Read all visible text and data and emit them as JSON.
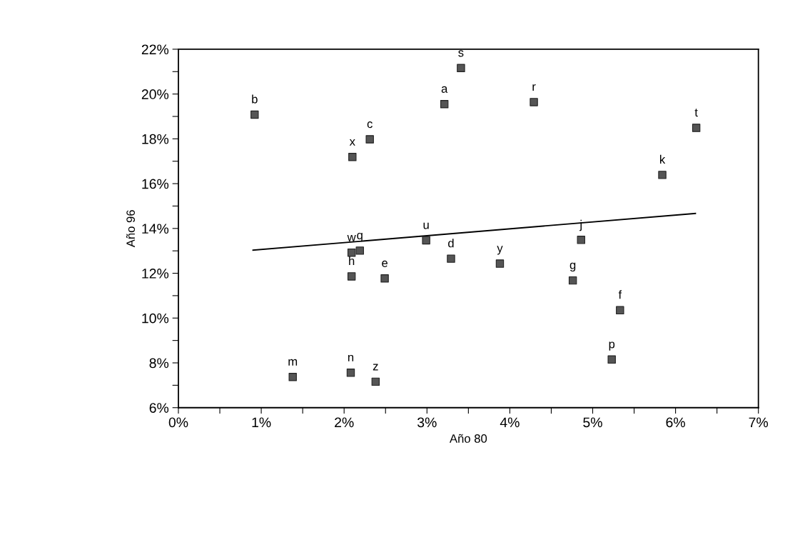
{
  "chart_data": {
    "type": "scatter",
    "xlabel": "Año 80",
    "ylabel": "Año 96",
    "xlim": [
      0,
      7
    ],
    "ylim": [
      6,
      22
    ],
    "xticks": [
      {
        "value": 0,
        "label": "0%"
      },
      {
        "value": 0.5,
        "label": null
      },
      {
        "value": 1,
        "label": "1%"
      },
      {
        "value": 1.5,
        "label": null
      },
      {
        "value": 2,
        "label": "2%"
      },
      {
        "value": 2.5,
        "label": null
      },
      {
        "value": 3,
        "label": "3%"
      },
      {
        "value": 3.5,
        "label": null
      },
      {
        "value": 4,
        "label": "4%"
      },
      {
        "value": 4.5,
        "label": null
      },
      {
        "value": 5,
        "label": "5%"
      },
      {
        "value": 5.5,
        "label": null
      },
      {
        "value": 6,
        "label": "6%"
      },
      {
        "value": 6.5,
        "label": null
      },
      {
        "value": 7,
        "label": "7%"
      }
    ],
    "yticks": [
      {
        "value": 6,
        "label": "6%"
      },
      {
        "value": 7,
        "label": null
      },
      {
        "value": 8,
        "label": "8%"
      },
      {
        "value": 9,
        "label": null
      },
      {
        "value": 10,
        "label": "10%"
      },
      {
        "value": 11,
        "label": null
      },
      {
        "value": 12,
        "label": "12%"
      },
      {
        "value": 13,
        "label": null
      },
      {
        "value": 14,
        "label": "14%"
      },
      {
        "value": 15,
        "label": null
      },
      {
        "value": 16,
        "label": "16%"
      },
      {
        "value": 17,
        "label": null
      },
      {
        "value": 18,
        "label": "18%"
      },
      {
        "value": 19,
        "label": null
      },
      {
        "value": 20,
        "label": "20%"
      },
      {
        "value": 21,
        "label": null
      },
      {
        "value": 22,
        "label": "22%"
      }
    ],
    "grid": false,
    "marker": "square",
    "series": [
      {
        "color": "#555555",
        "x": [
          0.92,
          2.1,
          2.31,
          3.21,
          3.41,
          4.29,
          6.25,
          5.84,
          4.86,
          2.09,
          2.19,
          2.09,
          2.49,
          2.99,
          3.29,
          1.38,
          2.08,
          2.38,
          3.88,
          4.76,
          5.33,
          5.23
        ],
        "values": [
          19.08,
          17.19,
          17.98,
          19.55,
          21.16,
          19.64,
          18.49,
          16.39,
          13.49,
          12.92,
          13.01,
          11.86,
          11.77,
          13.47,
          12.65,
          7.37,
          7.56,
          7.16,
          12.43,
          11.68,
          10.35,
          8.15
        ]
      },
      {
        "type": "line",
        "color": "#000000",
        "marker": "none",
        "line_style": "solid",
        "x": [
          0.9,
          6.24
        ],
        "values": [
          13.03,
          14.67
        ]
      }
    ],
    "annotations": [
      {
        "text": "b",
        "x": 0.92,
        "y": 19.08
      },
      {
        "text": "x",
        "x": 2.1,
        "y": 17.19
      },
      {
        "text": "c",
        "x": 2.31,
        "y": 17.98
      },
      {
        "text": "a",
        "x": 3.21,
        "y": 19.55
      },
      {
        "text": "s",
        "x": 3.41,
        "y": 21.16
      },
      {
        "text": "r",
        "x": 4.29,
        "y": 19.64
      },
      {
        "text": "t",
        "x": 6.25,
        "y": 18.49
      },
      {
        "text": "k",
        "x": 5.84,
        "y": 16.39
      },
      {
        "text": "j",
        "x": 4.86,
        "y": 13.49
      },
      {
        "text": "w",
        "x": 2.09,
        "y": 12.92
      },
      {
        "text": "q",
        "x": 2.19,
        "y": 13.01
      },
      {
        "text": "h",
        "x": 2.09,
        "y": 11.86
      },
      {
        "text": "e",
        "x": 2.49,
        "y": 11.77
      },
      {
        "text": "u",
        "x": 2.99,
        "y": 13.47
      },
      {
        "text": "d",
        "x": 3.29,
        "y": 12.65
      },
      {
        "text": "m",
        "x": 1.38,
        "y": 7.37
      },
      {
        "text": "n",
        "x": 2.08,
        "y": 7.56
      },
      {
        "text": "z",
        "x": 2.38,
        "y": 7.16
      },
      {
        "text": "y",
        "x": 3.88,
        "y": 12.43
      },
      {
        "text": "g",
        "x": 4.76,
        "y": 11.68
      },
      {
        "text": "f",
        "x": 5.33,
        "y": 10.35
      },
      {
        "text": "p",
        "x": 5.23,
        "y": 8.15
      }
    ]
  }
}
